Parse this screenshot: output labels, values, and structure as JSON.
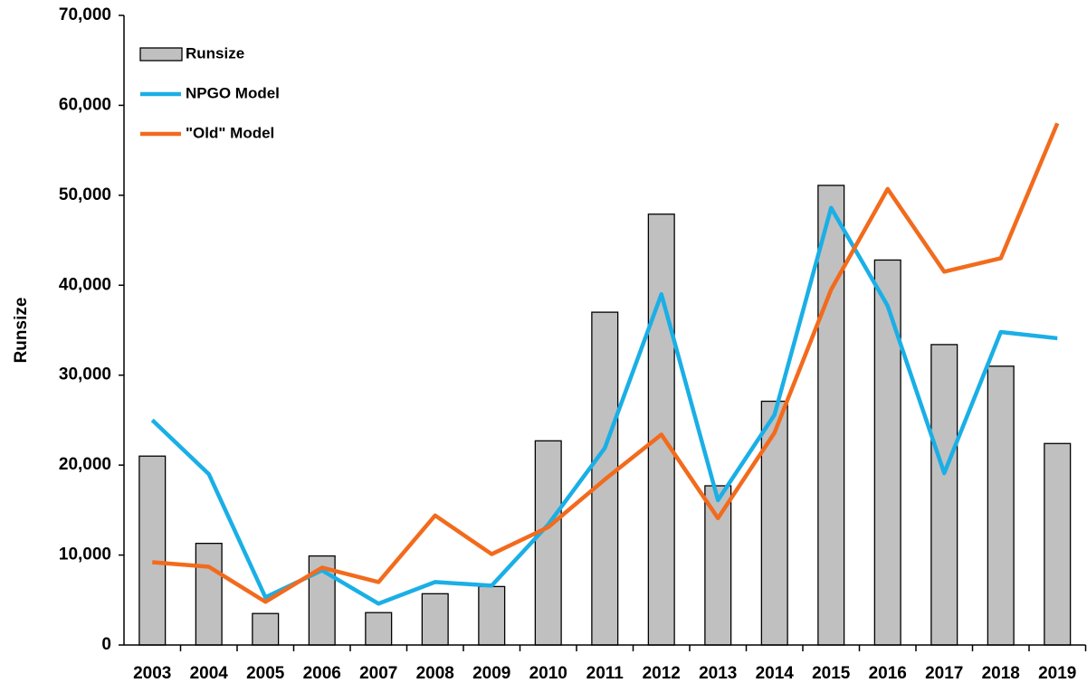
{
  "chart_data": {
    "type": "combo",
    "y_label": "Runsize",
    "categories": [
      "2003",
      "2004",
      "2005",
      "2006",
      "2007",
      "2008",
      "2009",
      "2010",
      "2011",
      "2012",
      "2013",
      "2014",
      "2015",
      "2016",
      "2017",
      "2018",
      "2019"
    ],
    "series": [
      {
        "name": "Runsize",
        "type": "bar",
        "color": "#c0c0c0",
        "values": [
          21000,
          11300,
          3500,
          9900,
          3600,
          5700,
          6500,
          22700,
          37000,
          47900,
          17700,
          27100,
          51100,
          42800,
          33400,
          31000,
          22400
        ]
      },
      {
        "name": "NPGO Model",
        "type": "line",
        "color": "#1aafe6",
        "values": [
          25000,
          19000,
          5300,
          8300,
          4600,
          7000,
          6600,
          13400,
          21900,
          39000,
          16100,
          25600,
          48600,
          37700,
          19100,
          34800,
          34100
        ]
      },
      {
        "name": "\"Old\" Model",
        "type": "line",
        "color": "#f26b1d",
        "values": [
          9200,
          8700,
          4800,
          8600,
          7000,
          14400,
          10100,
          13100,
          18400,
          23400,
          14100,
          23600,
          39500,
          50700,
          41500,
          43000,
          58000
        ]
      }
    ],
    "ylim": [
      0,
      70000
    ],
    "yticks": [
      0,
      {
        "value": 10000,
        "label": "10,000"
      },
      {
        "value": 20000,
        "label": "20,000"
      },
      {
        "value": 30000,
        "label": "30,000"
      },
      {
        "value": 40000,
        "label": "40,000"
      },
      {
        "value": 50000,
        "label": "50,000"
      },
      {
        "value": 60000,
        "label": "60,000"
      },
      {
        "value": 70000,
        "label": "70,000"
      }
    ],
    "grid": false
  }
}
